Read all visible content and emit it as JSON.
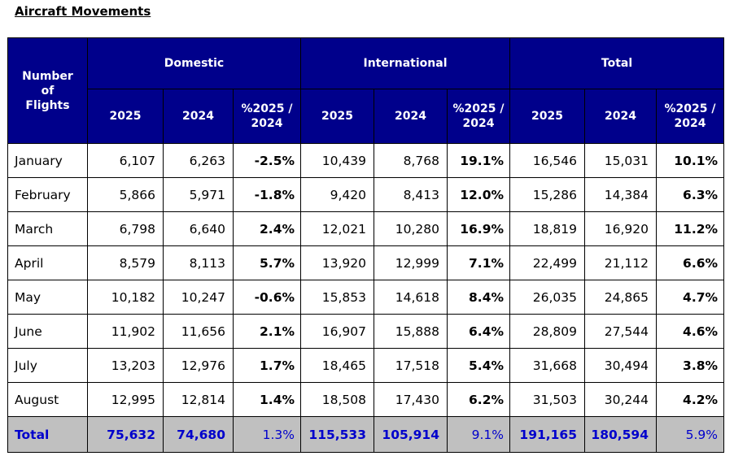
{
  "page": {
    "title": "Aircraft Movements"
  },
  "table": {
    "corner_header": "Number of Flights",
    "groups": [
      "Domestic",
      "International",
      "Total"
    ],
    "sub_headers": [
      "2025",
      "2024",
      "%2025 / 2024",
      "2025",
      "2024",
      "%2025 / 2024",
      "2025",
      "2024",
      "%2025 / 2024"
    ],
    "rows": [
      {
        "month": "January",
        "cells": [
          "6,107",
          "6,263",
          "-2.5%",
          "10,439",
          "8,768",
          "19.1%",
          "16,546",
          "15,031",
          "10.1%"
        ]
      },
      {
        "month": "February",
        "cells": [
          "5,866",
          "5,971",
          "-1.8%",
          "9,420",
          "8,413",
          "12.0%",
          "15,286",
          "14,384",
          "6.3%"
        ]
      },
      {
        "month": "March",
        "cells": [
          "6,798",
          "6,640",
          "2.4%",
          "12,021",
          "10,280",
          "16.9%",
          "18,819",
          "16,920",
          "11.2%"
        ]
      },
      {
        "month": "April",
        "cells": [
          "8,579",
          "8,113",
          "5.7%",
          "13,920",
          "12,999",
          "7.1%",
          "22,499",
          "21,112",
          "6.6%"
        ]
      },
      {
        "month": "May",
        "cells": [
          "10,182",
          "10,247",
          "-0.6%",
          "15,853",
          "14,618",
          "8.4%",
          "26,035",
          "24,865",
          "4.7%"
        ]
      },
      {
        "month": "June",
        "cells": [
          "11,902",
          "11,656",
          "2.1%",
          "16,907",
          "15,888",
          "6.4%",
          "28,809",
          "27,544",
          "4.6%"
        ]
      },
      {
        "month": "July",
        "cells": [
          "13,203",
          "12,976",
          "1.7%",
          "18,465",
          "17,518",
          "5.4%",
          "31,668",
          "30,494",
          "3.8%"
        ]
      },
      {
        "month": "August",
        "cells": [
          "12,995",
          "12,814",
          "1.4%",
          "18,508",
          "17,430",
          "6.2%",
          "31,503",
          "30,244",
          "4.2%"
        ]
      }
    ],
    "total": {
      "label": "Total",
      "cells": [
        "75,632",
        "74,680",
        "1.3%",
        "115,533",
        "105,914",
        "9.1%",
        "191,165",
        "180,594",
        "5.9%"
      ]
    }
  },
  "colors": {
    "header_background": "#00008b",
    "header_text": "#ffffff",
    "total_background": "#c0c0c0",
    "total_text": "#0000cc"
  }
}
